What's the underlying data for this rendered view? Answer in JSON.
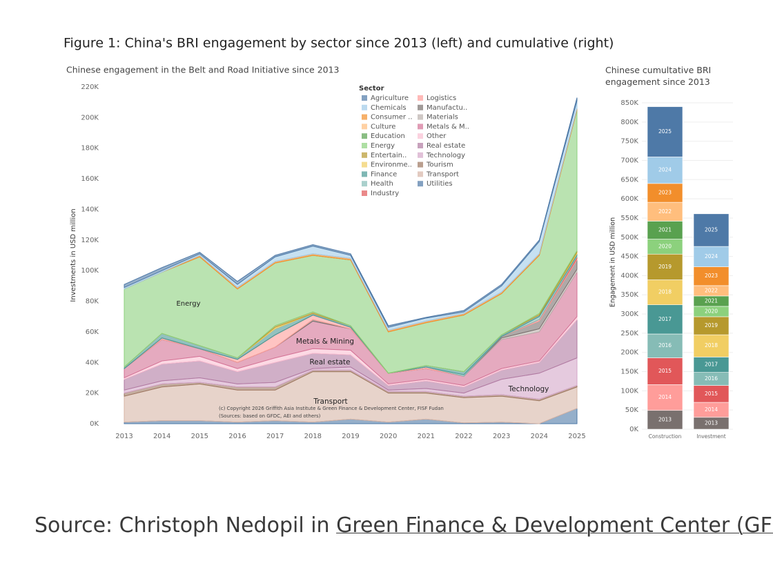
{
  "figure_title": "Figure 1: China's BRI engagement by sector since 2013 (left) and cumulative (right)",
  "chart_data": [
    {
      "type": "area",
      "stacked": true,
      "title": "Chinese engagement in the Belt and Road Initiative since 2013",
      "y_label": "Investments in USD million",
      "legend_title": "Sector",
      "categories": [
        "2013",
        "2014",
        "2015",
        "2016",
        "2017",
        "2018",
        "2019",
        "2020",
        "2021",
        "2022",
        "2023",
        "2024",
        "2025"
      ],
      "ylim": [
        0,
        220000
      ],
      "yticks": [
        {
          "value": 0,
          "label": "0K"
        },
        {
          "value": 20000,
          "label": "20K"
        },
        {
          "value": 40000,
          "label": "40K"
        },
        {
          "value": 60000,
          "label": "60K"
        },
        {
          "value": 80000,
          "label": "80K"
        },
        {
          "value": 100000,
          "label": "100K"
        },
        {
          "value": 120000,
          "label": "120K"
        },
        {
          "value": 140000,
          "label": "140K"
        },
        {
          "value": 160000,
          "label": "160K"
        },
        {
          "value": 180000,
          "label": "180K"
        },
        {
          "value": 200000,
          "label": "200K"
        },
        {
          "value": 220000,
          "label": "220K"
        }
      ],
      "grid": false,
      "series": [
        {
          "name": "Agriculture",
          "color": "#4e79a7",
          "values": [
            2000,
            2000,
            1000,
            2000,
            1000,
            1000,
            1000,
            1000,
            500,
            1000,
            1000,
            1000,
            2000
          ]
        },
        {
          "name": "Chemicals",
          "color": "#a0cbe8",
          "values": [
            1000,
            1000,
            1000,
            2000,
            3000,
            5000,
            2000,
            2000,
            2000,
            1000,
            4000,
            8000,
            5000
          ]
        },
        {
          "name": "Consumer ..",
          "color": "#f28e2b",
          "values": [
            0,
            0,
            1000,
            1000,
            1000,
            1000,
            1000,
            1000,
            1000,
            1000,
            1000,
            1000,
            1000
          ]
        },
        {
          "name": "Culture",
          "color": "#ffbe7d",
          "values": [
            0,
            0,
            0,
            0,
            0,
            0,
            0,
            0,
            0,
            0,
            0,
            0,
            0
          ]
        },
        {
          "name": "Education",
          "color": "#59a14f",
          "values": [
            0,
            0,
            0,
            0,
            0,
            0,
            0,
            0,
            0,
            0,
            0,
            0,
            0
          ]
        },
        {
          "name": "Energy",
          "color": "#8cd17d",
          "values": [
            51000,
            40000,
            58000,
            45000,
            41000,
            37000,
            43000,
            27000,
            28000,
            37000,
            27000,
            38000,
            92000
          ]
        },
        {
          "name": "Entertain..",
          "color": "#b6992d",
          "values": [
            0,
            0,
            0,
            0,
            1000,
            1000,
            0,
            0,
            0,
            0,
            0,
            1000,
            1000
          ]
        },
        {
          "name": "Environme..",
          "color": "#f1ce63",
          "values": [
            0,
            0,
            0,
            0,
            1000,
            0,
            0,
            0,
            0,
            0,
            0,
            0,
            1000
          ]
        },
        {
          "name": "Finance",
          "color": "#499894",
          "values": [
            1000,
            3000,
            2000,
            1000,
            4000,
            1000,
            1000,
            0,
            1000,
            2000,
            1000,
            1000,
            1000
          ]
        },
        {
          "name": "Health",
          "color": "#86bcb6",
          "values": [
            0,
            0,
            0,
            0,
            0,
            0,
            0,
            0,
            0,
            1000,
            0,
            2000,
            1000
          ]
        },
        {
          "name": "Industry",
          "color": "#e15759",
          "values": [
            0,
            0,
            0,
            0,
            0,
            0,
            0,
            0,
            0,
            0,
            0,
            0,
            1000
          ]
        },
        {
          "name": "Logistics",
          "color": "#ff9d9a",
          "values": [
            0,
            1000,
            0,
            2000,
            8000,
            3000,
            1000,
            0,
            1000,
            0,
            0,
            1000,
            1000
          ]
        },
        {
          "name": "Manufactu..",
          "color": "#79706e",
          "values": [
            0,
            0,
            0,
            0,
            0,
            1000,
            0,
            0,
            0,
            0,
            1000,
            5000,
            6000
          ]
        },
        {
          "name": "Materials",
          "color": "#bab0ac",
          "values": [
            0,
            0,
            0,
            0,
            0,
            0,
            0,
            0,
            0,
            0,
            1000,
            2000,
            2000
          ]
        },
        {
          "name": "Metals & M..",
          "color": "#d37295",
          "values": [
            6000,
            14000,
            5000,
            4000,
            7000,
            18000,
            14000,
            7000,
            7000,
            6000,
            19000,
            19000,
            29000
          ]
        },
        {
          "name": "Other",
          "color": "#fabfd2",
          "values": [
            1000,
            2000,
            3000,
            2000,
            3000,
            3000,
            3000,
            1000,
            1000,
            1000,
            1000,
            1000,
            2000
          ]
        },
        {
          "name": "Real estate",
          "color": "#b07aa1",
          "values": [
            7000,
            11000,
            11000,
            8000,
            13000,
            10000,
            8000,
            3000,
            5000,
            4000,
            6000,
            7000,
            25000
          ]
        },
        {
          "name": "Technology",
          "color": "#d4a6c8",
          "values": [
            2000,
            2000,
            3000,
            2000,
            3000,
            1000,
            2000,
            1000,
            2000,
            2000,
            10000,
            17000,
            18000
          ]
        },
        {
          "name": "Tourism",
          "color": "#9d7660",
          "values": [
            2000,
            2000,
            1000,
            2000,
            2000,
            1000,
            1000,
            1000,
            1000,
            1000,
            1000,
            1000,
            1000
          ]
        },
        {
          "name": "Transport",
          "color": "#d7b5a6",
          "values": [
            17000,
            22000,
            24000,
            21000,
            20000,
            33000,
            31000,
            19000,
            17000,
            16500,
            17000,
            15000,
            14000
          ]
        },
        {
          "name": "Utilities",
          "color": "#4e79a7",
          "values": [
            1000,
            2000,
            2000,
            1000,
            2000,
            1000,
            3000,
            1000,
            3000,
            500,
            1000,
            0,
            10000
          ]
        }
      ],
      "annotations": [
        "Energy",
        "Metals & Mining",
        "Real estate",
        "Transport",
        "Technology",
        "(c) Copyright 2026 Griffith Asia Institute & Green Finance & Development Center, FISF Fudan",
        "(Sources: based on GFDC, AEI and others)"
      ]
    },
    {
      "type": "stacked_bar",
      "title": "Chinese cumultative BRI engagement since 2013",
      "y_label": "Engagement in USD million",
      "categories": [
        "Construction",
        "Investment"
      ],
      "ylim": [
        0,
        850000
      ],
      "yticks": [
        {
          "value": 0,
          "label": "0K"
        },
        {
          "value": 50000,
          "label": "50K"
        },
        {
          "value": 100000,
          "label": "100K"
        },
        {
          "value": 150000,
          "label": "150K"
        },
        {
          "value": 200000,
          "label": "200K"
        },
        {
          "value": 250000,
          "label": "250K"
        },
        {
          "value": 300000,
          "label": "300K"
        },
        {
          "value": 350000,
          "label": "350K"
        },
        {
          "value": 400000,
          "label": "400K"
        },
        {
          "value": 450000,
          "label": "450K"
        },
        {
          "value": 500000,
          "label": "500K"
        },
        {
          "value": 550000,
          "label": "550K"
        },
        {
          "value": 600000,
          "label": "600K"
        },
        {
          "value": 650000,
          "label": "650K"
        },
        {
          "value": 700000,
          "label": "700K"
        },
        {
          "value": 750000,
          "label": "750K"
        },
        {
          "value": 800000,
          "label": "800K"
        },
        {
          "value": 850000,
          "label": "850K"
        }
      ],
      "grid": true,
      "series": [
        {
          "name": "2013",
          "color": "#79706e",
          "values": [
            49000,
            31000
          ]
        },
        {
          "name": "2014",
          "color": "#ff9d9a",
          "values": [
            67000,
            39000
          ]
        },
        {
          "name": "2015",
          "color": "#e15759",
          "values": [
            70000,
            44000
          ]
        },
        {
          "name": "2016",
          "color": "#86bcb6",
          "values": [
            62000,
            34000
          ]
        },
        {
          "name": "2017",
          "color": "#499894",
          "values": [
            76000,
            40000
          ]
        },
        {
          "name": "2018",
          "color": "#f1ce63",
          "values": [
            65000,
            58000
          ]
        },
        {
          "name": "2019",
          "color": "#b6992d",
          "values": [
            67000,
            47000
          ]
        },
        {
          "name": "2020",
          "color": "#8cd17d",
          "values": [
            39000,
            27000
          ]
        },
        {
          "name": "2021",
          "color": "#59a14f",
          "values": [
            47000,
            27000
          ]
        },
        {
          "name": "2022",
          "color": "#ffbe7d",
          "values": [
            49000,
            27000
          ]
        },
        {
          "name": "2023",
          "color": "#f28e2b",
          "values": [
            49000,
            49000
          ]
        },
        {
          "name": "2024",
          "color": "#a0cbe8",
          "values": [
            69000,
            53000
          ]
        },
        {
          "name": "2025",
          "color": "#4e79a7",
          "values": [
            131000,
            85000
          ]
        }
      ]
    }
  ],
  "source": {
    "prefix": "Source: Christoph Nedopil in",
    "link": "Green Finance & Development Center (GFDC)"
  }
}
